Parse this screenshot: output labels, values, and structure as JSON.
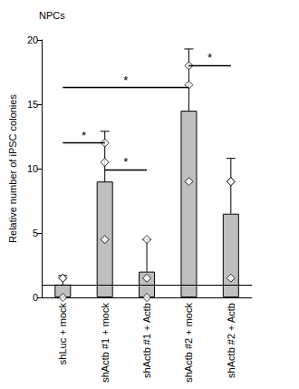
{
  "chart_data": {
    "type": "bar",
    "title": "NPCs",
    "y_label": "Relative number of iPSC colonies",
    "categories": [
      "shLuc + mock",
      "shActb #1 + mock",
      "shActb #1 + Actb",
      "shActb #2 + mock",
      "shActb #2 + Actb"
    ],
    "values": [
      1.0,
      9.0,
      2.0,
      14.5,
      6.5
    ],
    "errors": [
      0.7,
      3.9,
      2.5,
      4.8,
      4.3
    ],
    "points": [
      [
        1.5,
        1.5,
        0
      ],
      [
        12,
        10.5,
        4.5
      ],
      [
        4.5,
        1.5,
        0
      ],
      [
        18,
        16.5,
        9
      ],
      [
        9,
        9,
        1.5
      ]
    ],
    "marker": "diamond",
    "reference_line": 1,
    "significance": [
      {
        "from": 0,
        "to": 1,
        "y": 12.0,
        "label": "*"
      },
      {
        "from": 1,
        "to": 2,
        "y": 9.9,
        "label": "*"
      },
      {
        "from": 0,
        "to": 3,
        "y": 16.3,
        "label": "*"
      },
      {
        "from": 3,
        "to": 4,
        "y": 18.0,
        "label": "*"
      }
    ],
    "color": "#bfbfbf",
    "ylim": [
      0,
      20
    ],
    "yticks": [
      0,
      5,
      10,
      15,
      20
    ],
    "grid": false
  }
}
